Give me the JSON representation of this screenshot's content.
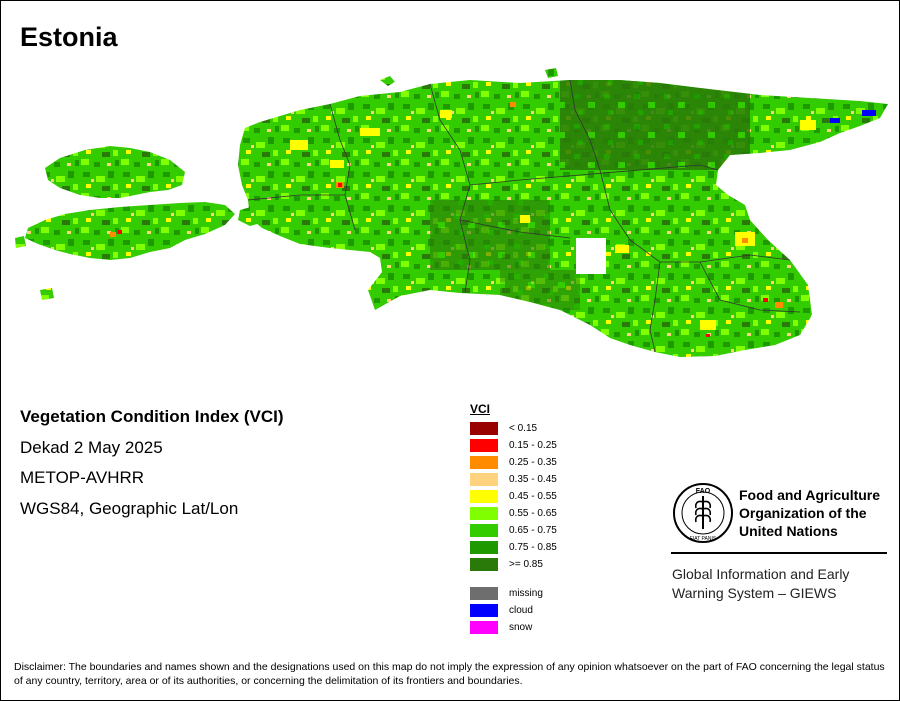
{
  "map": {
    "title": "Estonia",
    "colors": {
      "lt_015": "#990000",
      "c015_025": "#ff0000",
      "c025_035": "#ff8c00",
      "c035_045": "#ffd27f",
      "c045_055": "#ffff00",
      "c055_065": "#80ff00",
      "c065_075": "#33cc00",
      "c075_085": "#1f9900",
      "ge_085": "#2a7a0a",
      "missing": "#6e6e6e",
      "cloud": "#0000ff",
      "snow": "#ff00ff"
    }
  },
  "info": {
    "heading": "Vegetation Condition Index (VCI)",
    "period": "Dekad 2 May 2025",
    "sensor": "METOP-AVHRR",
    "projection": "WGS84, Geographic Lat/Lon"
  },
  "legend": {
    "title": "VCI",
    "items": [
      {
        "label": "< 0.15",
        "color": "#990000"
      },
      {
        "label": "0.15 - 0.25",
        "color": "#ff0000"
      },
      {
        "label": "0.25 - 0.35",
        "color": "#ff8c00"
      },
      {
        "label": "0.35 - 0.45",
        "color": "#ffd27f"
      },
      {
        "label": "0.45 - 0.55",
        "color": "#ffff00"
      },
      {
        "label": "0.55 - 0.65",
        "color": "#80ff00"
      },
      {
        "label": "0.65 - 0.75",
        "color": "#33cc00"
      },
      {
        "label": "0.75 - 0.85",
        "color": "#1f9900"
      },
      {
        "label": ">= 0.85",
        "color": "#2a7a0a"
      }
    ],
    "extra": [
      {
        "label": "missing",
        "color": "#6e6e6e"
      },
      {
        "label": "cloud",
        "color": "#0000ff"
      },
      {
        "label": "snow",
        "color": "#ff00ff"
      }
    ]
  },
  "org": {
    "name_line1": "Food and Agriculture",
    "name_line2": "Organization of the",
    "name_line3": "United Nations",
    "logo_top": "FAO",
    "logo_motto": "FIAT PANIS",
    "system_line1": "Global Information and Early",
    "system_line2": "Warning System – GIEWS"
  },
  "disclaimer": "Disclaimer: The boundaries and names shown and the designations used on this map do not imply the expression of any opinion whatsoever on the part of FAO concerning the legal status of any country, territory, area or of its authorities, or concerning the delimitation of its frontiers and boundaries."
}
